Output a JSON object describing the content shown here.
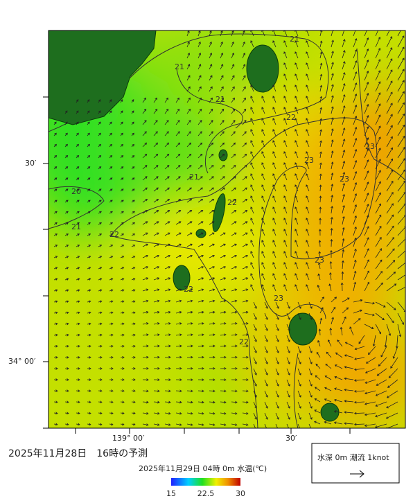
{
  "map": {
    "title": "2025年11月28日　16時の予測",
    "subtitle": "2025年11月29日 04時 0m 水温(℃)",
    "legend": "水深 0m 潮流 1knot",
    "lat_labels": [
      "30′",
      "34° 00′"
    ],
    "lon_labels": [
      "139° 00′",
      "30′"
    ],
    "contour_labels": [
      21,
      21,
      21,
      21,
      20,
      21,
      22,
      22,
      22,
      22,
      22,
      23,
      23,
      23,
      23,
      23
    ],
    "colorbar": {
      "ticks": [
        15,
        22.5,
        30
      ]
    }
  }
}
